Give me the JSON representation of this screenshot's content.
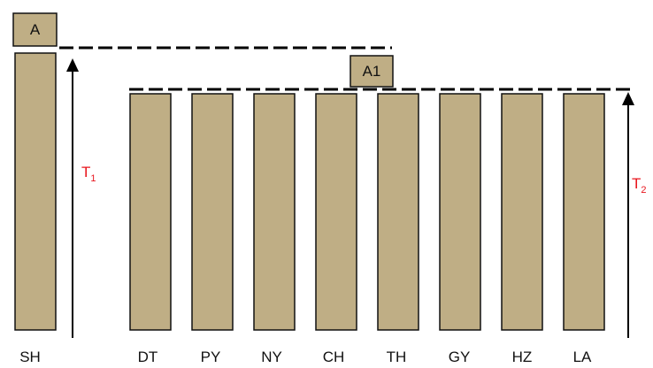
{
  "categories": [
    "SH",
    "DT",
    "PY",
    "NY",
    "CH",
    "TH",
    "GY",
    "HZ",
    "LA"
  ],
  "boxes": {
    "top_left": "A",
    "middle": "A1"
  },
  "markers": {
    "t1": {
      "main": "T",
      "sub": "1"
    },
    "t2": {
      "main": "T",
      "sub": "2"
    }
  },
  "colors": {
    "bar_fill": "#bfae85",
    "outline": "#111111",
    "marker_text": "#e8141c",
    "dash_line": "#000000"
  }
}
